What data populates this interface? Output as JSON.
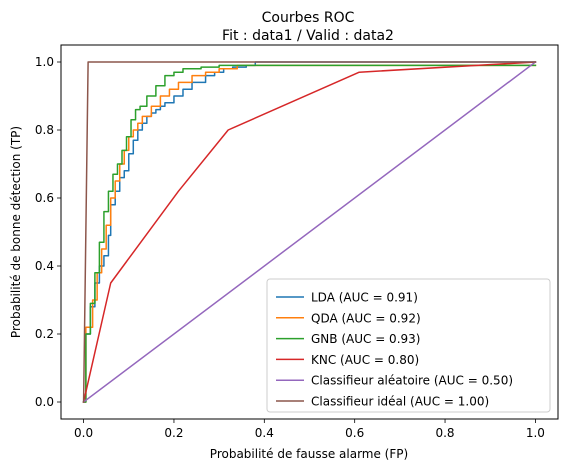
{
  "chart_data": {
    "type": "line",
    "title": "Courbes ROC",
    "subtitle": "Fit : data1  /  Valid : data2",
    "xlabel": "Probabilité de fausse alarme (FP)",
    "ylabel": "Probabilité de bonne détection (TP)",
    "xlim": [
      -0.05,
      1.05
    ],
    "ylim": [
      -0.05,
      1.05
    ],
    "x_ticks": [
      0.0,
      0.2,
      0.4,
      0.6,
      0.8,
      1.0
    ],
    "y_ticks": [
      0.0,
      0.2,
      0.4,
      0.6,
      0.8,
      1.0
    ],
    "x_tick_labels": [
      "0.0",
      "0.2",
      "0.4",
      "0.6",
      "0.8",
      "1.0"
    ],
    "y_tick_labels": [
      "0.0",
      "0.2",
      "0.4",
      "0.6",
      "0.8",
      "1.0"
    ],
    "grid": false,
    "legend_position": "lower-right",
    "series": [
      {
        "name": "LDA (AUC = 0.91)",
        "color": "#1f77b4",
        "x": [
          0.0,
          0.005,
          0.005,
          0.015,
          0.015,
          0.025,
          0.025,
          0.035,
          0.035,
          0.045,
          0.045,
          0.055,
          0.055,
          0.06,
          0.06,
          0.07,
          0.07,
          0.08,
          0.08,
          0.09,
          0.09,
          0.1,
          0.1,
          0.11,
          0.11,
          0.12,
          0.12,
          0.13,
          0.13,
          0.14,
          0.14,
          0.15,
          0.15,
          0.16,
          0.16,
          0.17,
          0.17,
          0.18,
          0.18,
          0.2,
          0.2,
          0.22,
          0.22,
          0.24,
          0.24,
          0.27,
          0.27,
          0.29,
          0.29,
          0.31,
          0.31,
          0.33,
          0.33,
          0.36,
          0.36,
          0.38,
          0.38,
          1.0
        ],
        "y": [
          0.0,
          0.0,
          0.2,
          0.2,
          0.28,
          0.28,
          0.35,
          0.35,
          0.4,
          0.4,
          0.43,
          0.43,
          0.49,
          0.49,
          0.58,
          0.58,
          0.62,
          0.62,
          0.66,
          0.66,
          0.68,
          0.68,
          0.73,
          0.73,
          0.77,
          0.77,
          0.8,
          0.8,
          0.82,
          0.82,
          0.84,
          0.84,
          0.85,
          0.85,
          0.86,
          0.86,
          0.87,
          0.87,
          0.88,
          0.88,
          0.9,
          0.9,
          0.92,
          0.92,
          0.94,
          0.94,
          0.96,
          0.96,
          0.97,
          0.97,
          0.98,
          0.98,
          0.985,
          0.985,
          0.99,
          0.99,
          1.0,
          1.0
        ]
      },
      {
        "name": "QDA (AUC = 0.92)",
        "color": "#ff7f0e",
        "x": [
          0.0,
          0.005,
          0.005,
          0.02,
          0.02,
          0.03,
          0.03,
          0.04,
          0.04,
          0.05,
          0.05,
          0.06,
          0.06,
          0.07,
          0.07,
          0.08,
          0.08,
          0.09,
          0.09,
          0.1,
          0.1,
          0.11,
          0.11,
          0.12,
          0.12,
          0.13,
          0.13,
          0.15,
          0.15,
          0.17,
          0.17,
          0.19,
          0.19,
          0.21,
          0.21,
          0.24,
          0.24,
          0.27,
          0.27,
          0.3,
          0.3,
          0.34,
          0.34,
          1.0
        ],
        "y": [
          0.0,
          0.0,
          0.22,
          0.22,
          0.3,
          0.3,
          0.38,
          0.38,
          0.45,
          0.45,
          0.52,
          0.52,
          0.6,
          0.6,
          0.65,
          0.65,
          0.7,
          0.7,
          0.74,
          0.74,
          0.78,
          0.78,
          0.8,
          0.8,
          0.82,
          0.82,
          0.84,
          0.84,
          0.87,
          0.87,
          0.9,
          0.9,
          0.92,
          0.92,
          0.94,
          0.94,
          0.96,
          0.96,
          0.97,
          0.97,
          0.98,
          0.98,
          0.99,
          0.99
        ]
      },
      {
        "name": "GNB (AUC = 0.93)",
        "color": "#2ca02c",
        "x": [
          0.0,
          0.005,
          0.005,
          0.015,
          0.015,
          0.025,
          0.025,
          0.035,
          0.035,
          0.045,
          0.045,
          0.055,
          0.055,
          0.065,
          0.065,
          0.075,
          0.075,
          0.085,
          0.085,
          0.095,
          0.095,
          0.105,
          0.105,
          0.115,
          0.115,
          0.125,
          0.125,
          0.14,
          0.14,
          0.16,
          0.16,
          0.18,
          0.18,
          0.2,
          0.2,
          0.22,
          0.22,
          0.26,
          0.26,
          0.3,
          0.3,
          1.0
        ],
        "y": [
          0.0,
          0.0,
          0.2,
          0.2,
          0.29,
          0.29,
          0.38,
          0.38,
          0.47,
          0.47,
          0.56,
          0.56,
          0.62,
          0.62,
          0.67,
          0.67,
          0.7,
          0.7,
          0.74,
          0.74,
          0.78,
          0.78,
          0.83,
          0.83,
          0.86,
          0.86,
          0.87,
          0.87,
          0.9,
          0.9,
          0.93,
          0.93,
          0.96,
          0.96,
          0.97,
          0.97,
          0.98,
          0.98,
          0.985,
          0.985,
          0.99,
          0.99
        ]
      },
      {
        "name": "KNC (AUC = 0.80)",
        "color": "#d62728",
        "x": [
          0.0,
          0.06,
          0.21,
          0.32,
          0.61,
          1.0
        ],
        "y": [
          0.0,
          0.35,
          0.62,
          0.8,
          0.97,
          1.0
        ]
      },
      {
        "name": "Classifieur aléatoire (AUC = 0.50)",
        "color": "#9467bd",
        "x": [
          0.0,
          1.0
        ],
        "y": [
          0.0,
          1.0
        ]
      },
      {
        "name": "Classifieur idéal (AUC = 1.00)",
        "color": "#8c564b",
        "x": [
          0.0,
          0.01,
          1.0
        ],
        "y": [
          0.0,
          1.0,
          1.0
        ]
      }
    ]
  }
}
